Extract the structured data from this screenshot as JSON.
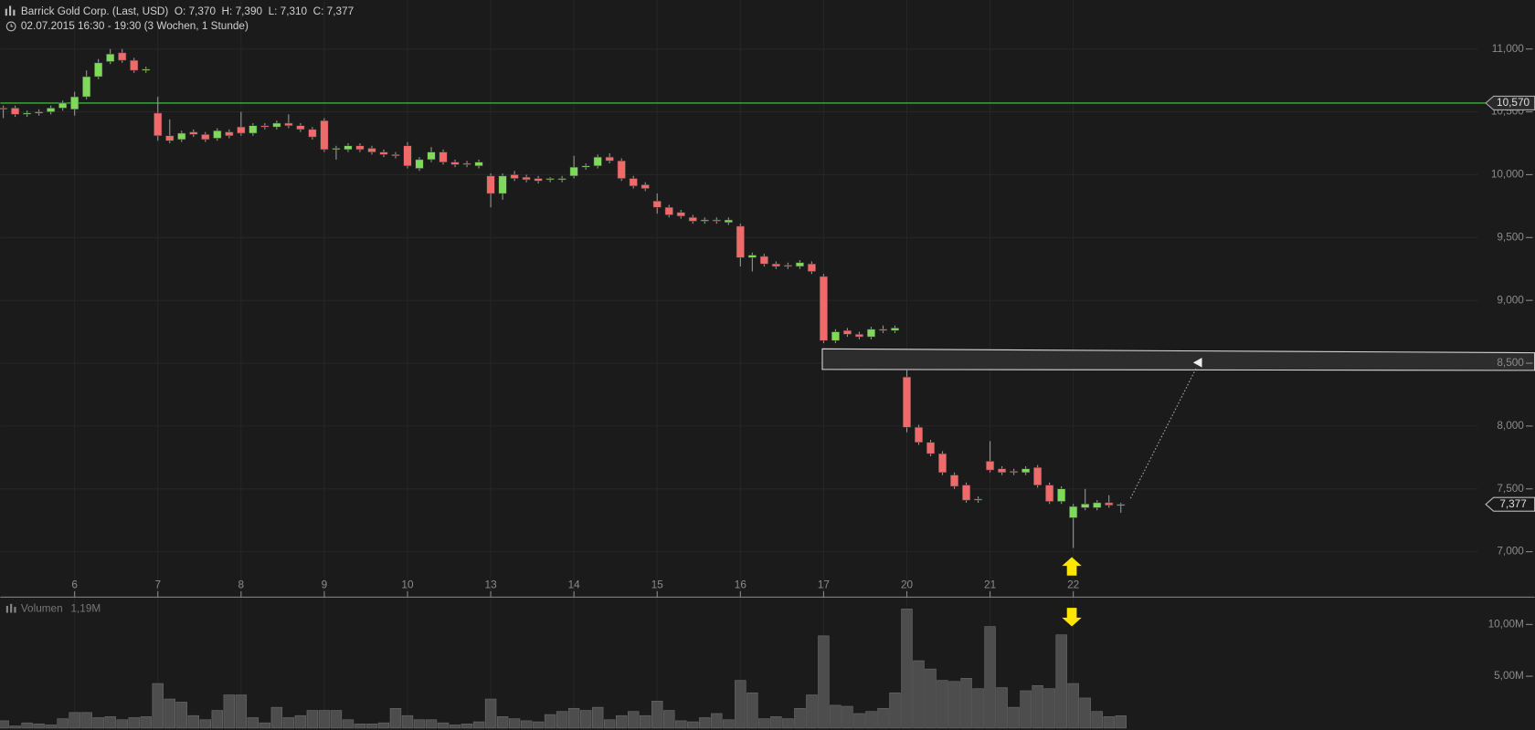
{
  "chart_data": [
    {
      "type": "candlestick",
      "title": "Barrick Gold Corp. (Last, USD)  O: 7,370  H: 7,390  L: 7,310  C: 7,377",
      "subtitle": "02.07.2015 16:30 - 19:30 (3 Wochen, 1 Stunde)",
      "categories": [
        null,
        null,
        null,
        null,
        null,
        null,
        "6",
        null,
        null,
        null,
        null,
        null,
        null,
        "7",
        null,
        null,
        null,
        null,
        null,
        null,
        "8",
        null,
        null,
        null,
        null,
        null,
        null,
        "9",
        null,
        null,
        null,
        null,
        null,
        null,
        "10",
        null,
        null,
        null,
        null,
        null,
        null,
        "13",
        null,
        null,
        null,
        null,
        null,
        null,
        "14",
        null,
        null,
        null,
        null,
        null,
        null,
        "15",
        null,
        null,
        null,
        null,
        null,
        null,
        "16",
        null,
        null,
        null,
        null,
        null,
        null,
        "17",
        null,
        null,
        null,
        null,
        null,
        null,
        "20",
        null,
        null,
        null,
        null,
        null,
        null,
        "21",
        null,
        null,
        null,
        null,
        null,
        null,
        "22",
        null,
        null,
        null,
        null
      ],
      "open": [
        10.53,
        10.53,
        10.48,
        10.49,
        10.5,
        10.53,
        10.52,
        10.62,
        10.78,
        10.9,
        10.97,
        10.91,
        10.83,
        10.49,
        10.31,
        10.28,
        10.34,
        10.32,
        10.29,
        10.34,
        10.38,
        10.33,
        10.39,
        10.38,
        10.41,
        10.39,
        10.36,
        10.43,
        10.2,
        10.2,
        10.23,
        10.21,
        10.18,
        10.16,
        10.23,
        10.05,
        10.12,
        10.18,
        10.1,
        10.09,
        10.07,
        9.99,
        9.85,
        10.0,
        9.98,
        9.97,
        9.96,
        9.96,
        9.99,
        10.06,
        10.07,
        10.14,
        10.11,
        9.97,
        9.92,
        9.79,
        9.74,
        9.7,
        9.66,
        9.63,
        9.64,
        9.62,
        9.59,
        9.34,
        9.35,
        9.29,
        9.28,
        9.27,
        9.29,
        9.19,
        8.68,
        8.76,
        8.73,
        8.71,
        8.77,
        8.76,
        8.39,
        7.99,
        7.87,
        7.78,
        7.61,
        7.53,
        7.42,
        7.72,
        7.66,
        7.64,
        7.63,
        7.67,
        7.53,
        7.4,
        7.27,
        7.35,
        7.35,
        7.39,
        7.37
      ],
      "high": [
        10.55,
        10.55,
        10.51,
        10.52,
        10.55,
        10.59,
        10.66,
        10.83,
        10.92,
        11.0,
        11.0,
        10.93,
        10.86,
        10.62,
        10.44,
        10.35,
        10.36,
        10.34,
        10.37,
        10.36,
        10.5,
        10.41,
        10.41,
        10.43,
        10.48,
        10.41,
        10.38,
        10.45,
        10.23,
        10.25,
        10.25,
        10.23,
        10.2,
        10.18,
        10.26,
        10.14,
        10.22,
        10.2,
        10.12,
        10.11,
        10.12,
        10.01,
        10.01,
        10.03,
        10.0,
        9.99,
        9.98,
        9.99,
        10.15,
        10.09,
        10.16,
        10.17,
        10.13,
        9.99,
        9.94,
        9.85,
        9.76,
        9.72,
        9.68,
        9.66,
        9.66,
        9.66,
        9.61,
        9.38,
        9.37,
        9.31,
        9.3,
        9.32,
        9.31,
        9.21,
        8.77,
        8.78,
        8.75,
        8.79,
        8.8,
        8.8,
        8.45,
        8.01,
        7.89,
        7.8,
        7.63,
        7.55,
        7.44,
        7.88,
        7.68,
        7.66,
        7.68,
        7.69,
        7.55,
        7.52,
        7.38,
        7.5,
        7.41,
        7.45,
        7.39
      ],
      "low": [
        10.45,
        10.46,
        10.46,
        10.47,
        10.48,
        10.51,
        10.47,
        10.6,
        10.76,
        10.88,
        10.89,
        10.81,
        10.81,
        10.27,
        10.25,
        10.26,
        10.3,
        10.26,
        10.27,
        10.29,
        10.31,
        10.31,
        10.36,
        10.36,
        10.37,
        10.34,
        10.28,
        10.18,
        10.12,
        10.18,
        10.18,
        10.16,
        10.14,
        10.13,
        10.05,
        10.03,
        10.1,
        10.08,
        10.06,
        10.06,
        10.05,
        9.74,
        9.8,
        9.95,
        9.94,
        9.93,
        9.94,
        9.94,
        9.97,
        10.04,
        10.05,
        10.09,
        9.95,
        9.89,
        9.87,
        9.69,
        9.66,
        9.65,
        9.61,
        9.61,
        9.61,
        9.6,
        9.27,
        9.23,
        9.27,
        9.25,
        9.25,
        9.25,
        9.21,
        8.66,
        8.66,
        8.71,
        8.69,
        8.69,
        8.74,
        8.74,
        7.95,
        7.85,
        7.76,
        7.61,
        7.5,
        7.39,
        7.39,
        7.63,
        7.61,
        7.61,
        7.61,
        7.51,
        7.38,
        7.38,
        7.03,
        7.33,
        7.33,
        7.35,
        7.31
      ],
      "close": [
        10.52,
        10.48,
        10.49,
        10.5,
        10.53,
        10.57,
        10.62,
        10.78,
        10.89,
        10.96,
        10.91,
        10.83,
        10.84,
        10.31,
        10.27,
        10.33,
        10.32,
        10.28,
        10.35,
        10.31,
        10.33,
        10.39,
        10.38,
        10.41,
        10.39,
        10.36,
        10.3,
        10.2,
        10.21,
        10.23,
        10.2,
        10.18,
        10.16,
        10.15,
        10.07,
        10.12,
        10.18,
        10.1,
        10.08,
        10.08,
        10.1,
        9.85,
        9.99,
        9.97,
        9.96,
        9.95,
        9.97,
        9.97,
        10.06,
        10.07,
        10.14,
        10.11,
        9.97,
        9.91,
        9.89,
        9.74,
        9.68,
        9.67,
        9.63,
        9.64,
        9.63,
        9.64,
        9.34,
        9.36,
        9.29,
        9.27,
        9.27,
        9.3,
        9.23,
        8.68,
        8.75,
        8.73,
        8.71,
        8.77,
        8.76,
        8.78,
        7.99,
        7.87,
        7.78,
        7.63,
        7.52,
        7.41,
        7.41,
        7.65,
        7.63,
        7.63,
        7.66,
        7.53,
        7.4,
        7.5,
        7.36,
        7.38,
        7.39,
        7.37,
        7.377
      ],
      "up_color": "#7fd95a",
      "down_color": "#f06a6a",
      "ylim": [
        6.67,
        11.39
      ],
      "yticks": [
        {
          "value": 7,
          "label": "7,000"
        },
        {
          "value": 7.5,
          "label": "7,500"
        },
        {
          "value": 8,
          "label": "8,000"
        },
        {
          "value": 8.5,
          "label": "8,500"
        },
        {
          "value": 9,
          "label": "9,000"
        },
        {
          "value": 9.5,
          "label": "9,500"
        },
        {
          "value": 10,
          "label": "10,000"
        },
        {
          "value": 10.5,
          "label": "10,500"
        },
        {
          "value": 11,
          "label": "11,000"
        }
      ],
      "grid": true,
      "hline": {
        "value": 10.57,
        "label": "10,570",
        "color": "#3fae3f"
      },
      "last_price": {
        "value": 7.377,
        "label": "7,377"
      }
    },
    {
      "type": "bar",
      "title": "Volumen",
      "subtitle": "1,19M",
      "values": [
        0.7,
        0.2,
        0.5,
        0.4,
        0.3,
        0.9,
        1.5,
        1.5,
        1.0,
        1.1,
        0.8,
        1.0,
        1.1,
        4.3,
        2.8,
        2.5,
        1.2,
        0.8,
        1.7,
        3.2,
        3.2,
        1.0,
        0.5,
        2.0,
        1.0,
        1.2,
        1.7,
        1.7,
        1.7,
        0.8,
        0.4,
        0.4,
        0.5,
        1.9,
        1.2,
        0.8,
        0.8,
        0.5,
        0.3,
        0.4,
        0.6,
        2.8,
        1.1,
        0.9,
        0.7,
        0.6,
        1.3,
        1.6,
        1.9,
        1.7,
        2.0,
        0.8,
        1.2,
        1.6,
        1.2,
        2.6,
        1.7,
        0.7,
        0.6,
        1.0,
        1.4,
        0.8,
        4.6,
        3.4,
        0.9,
        1.1,
        0.9,
        1.9,
        3.2,
        8.9,
        2.2,
        2.1,
        1.4,
        1.6,
        1.9,
        3.4,
        11.5,
        6.5,
        5.7,
        4.6,
        4.5,
        4.8,
        3.8,
        9.8,
        3.9,
        2.0,
        3.6,
        4.1,
        3.8,
        9.0,
        4.3,
        2.9,
        1.6,
        1.1,
        1.19
      ],
      "color": "#4d4d4d",
      "ylim": [
        0,
        12.55
      ],
      "yticks": [
        {
          "value": 5,
          "label": "5,00M"
        },
        {
          "value": 10,
          "label": "10,00M"
        }
      ]
    }
  ]
}
